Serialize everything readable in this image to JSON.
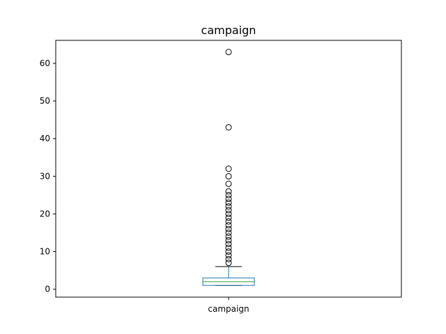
{
  "chart_data": {
    "type": "box",
    "title": "campaign",
    "categories": [
      "campaign"
    ],
    "box": {
      "whisker_low": 1,
      "q1": 1,
      "median": 2,
      "q3": 3,
      "whisker_high": 6
    },
    "outliers": [
      7,
      8,
      9,
      10,
      11,
      12,
      13,
      14,
      15,
      16,
      17,
      18,
      19,
      20,
      21,
      22,
      23,
      24,
      25,
      26,
      28,
      30,
      32,
      43,
      63
    ],
    "ylim": [
      -2.1,
      66.1
    ],
    "yticks": [
      0,
      10,
      20,
      30,
      40,
      50,
      60
    ],
    "xlabel": "",
    "ylabel": "",
    "grid": false,
    "colors": {
      "box": "#1f77b4",
      "median": "#2ca02c",
      "whisker": "#1f77b4",
      "cap": "#000000",
      "outlier": "#000000"
    }
  }
}
